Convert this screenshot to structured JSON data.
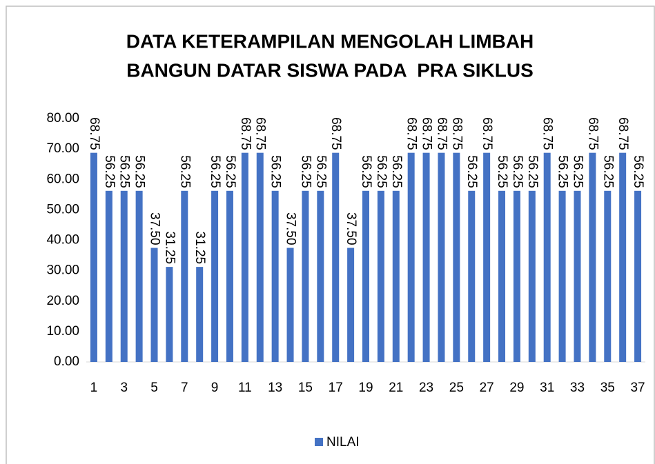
{
  "chart_data": {
    "type": "bar",
    "title": [
      "DATA KETERAMPILAN MENGOLAH LIMBAH",
      "BANGUN DATAR SISWA PADA  PRA SIKLUS"
    ],
    "categories": [
      1,
      null,
      3,
      null,
      5,
      null,
      7,
      null,
      9,
      null,
      11,
      null,
      13,
      null,
      15,
      null,
      17,
      null,
      19,
      null,
      21,
      null,
      23,
      null,
      25,
      null,
      27,
      null,
      29,
      null,
      31,
      null,
      33,
      null,
      35,
      null,
      37
    ],
    "series": [
      {
        "name": "NILAI",
        "color": "#4472c4",
        "values": [
          68.75,
          56.25,
          56.25,
          56.25,
          37.5,
          31.25,
          56.25,
          31.25,
          56.25,
          56.25,
          68.75,
          68.75,
          56.25,
          37.5,
          56.25,
          56.25,
          68.75,
          37.5,
          56.25,
          56.25,
          56.25,
          68.75,
          68.75,
          68.75,
          68.75,
          56.25,
          68.75,
          56.25,
          56.25,
          56.25,
          68.75,
          56.25,
          56.25,
          68.75,
          56.25,
          68.75,
          56.25
        ],
        "value_labels": [
          "68.75",
          "56.25",
          "56.25",
          "56.25",
          "37.50",
          "31.25",
          "56.25",
          "31.25",
          "56.25",
          "56.25",
          "68.75",
          "68.75",
          "56.25",
          "37.50",
          "56.25",
          "56.25",
          "68.75",
          "37.50",
          "56.25",
          "56.25",
          "56.25",
          "68.75",
          "68.75",
          "68.75",
          "68.75",
          "56.25",
          "68.75",
          "56.25",
          "56.25",
          "56.25",
          "68.75",
          "56.25",
          "56.25",
          "68.75",
          "56.25",
          "68.75",
          "56.25"
        ]
      }
    ],
    "ylim": [
      0,
      80
    ],
    "yticks": [
      {
        "value": 0,
        "label": "0.00"
      },
      {
        "value": 10,
        "label": "10.00"
      },
      {
        "value": 20,
        "label": "20.00"
      },
      {
        "value": 30,
        "label": "30.00"
      },
      {
        "value": 40,
        "label": "40.00"
      },
      {
        "value": 50,
        "label": "50.00"
      },
      {
        "value": 60,
        "label": "60.00"
      },
      {
        "value": 70,
        "label": "70.00"
      },
      {
        "value": 80,
        "label": "80.00"
      }
    ],
    "grid": false,
    "legend": "bottom"
  }
}
